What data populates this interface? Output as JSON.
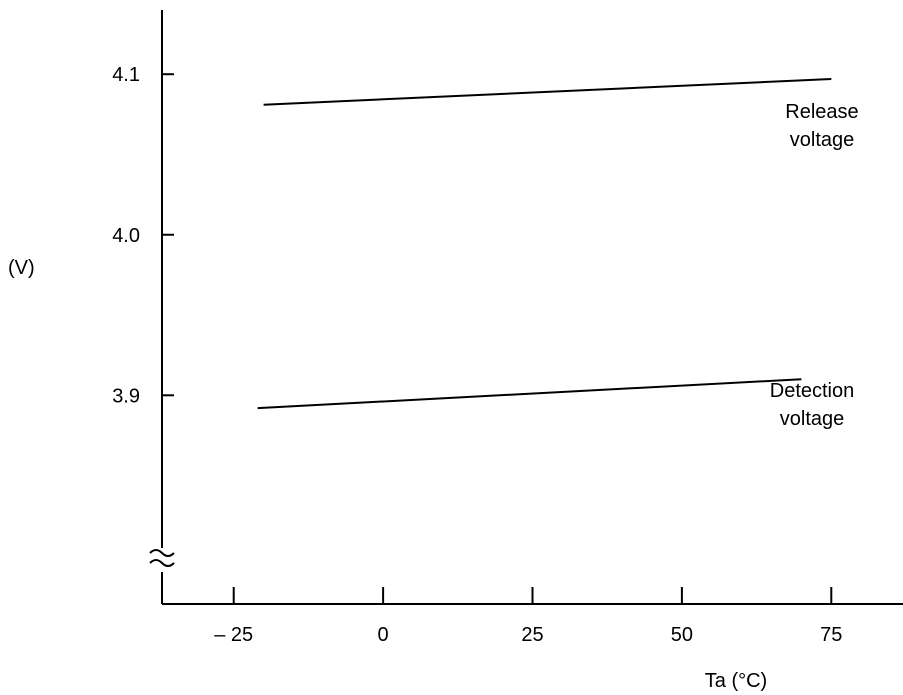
{
  "chart_data": {
    "type": "line",
    "xlabel": "Ta (°C)",
    "ylabel": "(V)",
    "x_ticks": [
      -25,
      0,
      25,
      50,
      75
    ],
    "x_tick_labels": [
      "– 25",
      "0",
      "25",
      "50",
      "75"
    ],
    "y_ticks": [
      3.9,
      4.0,
      4.1
    ],
    "y_tick_labels": [
      "3.9",
      "4.0",
      "4.1"
    ],
    "xlim": [
      -37,
      87
    ],
    "ylim": [
      3.77,
      4.14
    ],
    "y_axis_break": true,
    "grid": false,
    "series": [
      {
        "label_lines": [
          "Release",
          "voltage"
        ],
        "x": [
          -20,
          75
        ],
        "y": [
          4.081,
          4.097
        ]
      },
      {
        "label_lines": [
          "Detection",
          "voltage"
        ],
        "x": [
          -21,
          70
        ],
        "y": [
          3.892,
          3.91
        ]
      }
    ]
  }
}
